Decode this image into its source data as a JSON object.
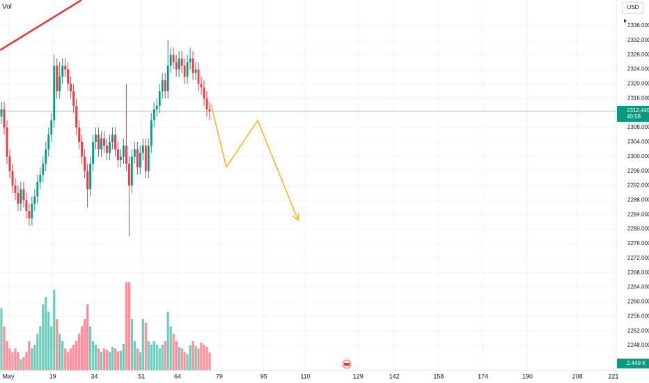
{
  "chart_data": {
    "type": "candlestick",
    "volume_title": "Vol",
    "currency": "USD",
    "countdown": "40:58",
    "volume_last_label": "2.449 K",
    "up_color": "#089981",
    "down_color": "#f23645",
    "grid": true,
    "xlim": [
      0,
      222
    ],
    "xticks": [
      {
        "value": 3,
        "label": "May"
      },
      19,
      34,
      51,
      64,
      79,
      95,
      110,
      129,
      142,
      158,
      174,
      190,
      208,
      221
    ],
    "ylim": [
      2241.1,
      2343.1
    ],
    "yticks": [
      {
        "value": 2248,
        "label": "2248.000"
      },
      {
        "value": 2252,
        "label": "2252.000"
      },
      {
        "value": 2256,
        "label": "2256.000"
      },
      {
        "value": 2260,
        "label": "2260.000"
      },
      {
        "value": 2264,
        "label": "2264.000"
      },
      {
        "value": 2268,
        "label": "2268.000"
      },
      {
        "value": 2272,
        "label": "2272.000"
      },
      {
        "value": 2276,
        "label": "2276.000"
      },
      {
        "value": 2280,
        "label": "2280.000"
      },
      {
        "value": 2284,
        "label": "2284.000"
      },
      {
        "value": 2288,
        "label": "2288.000"
      },
      {
        "value": 2292,
        "label": "2292.000"
      },
      {
        "value": 2296,
        "label": "2296.000"
      },
      {
        "value": 2300,
        "label": "2300.000"
      },
      {
        "value": 2304,
        "label": "2304.000"
      },
      {
        "value": 2308,
        "label": "2308.000"
      },
      {
        "value": 2316,
        "label": "2316.000"
      },
      {
        "value": 2320,
        "label": "2320.000"
      },
      {
        "value": 2324,
        "label": "2324.000"
      },
      {
        "value": 2328,
        "label": "2328.000"
      },
      {
        "value": 2332,
        "label": "2332.000"
      },
      {
        "value": 2336,
        "label": "2336.000"
      }
    ],
    "volume_ylim": [
      0,
      12.5
    ],
    "open": [
      2311,
      2313,
      2308,
      2300,
      2296,
      2292,
      2290,
      2287,
      2291,
      2288,
      2285,
      2283,
      2287,
      2289,
      2293,
      2295,
      2298,
      2302,
      2306,
      2310,
      2325,
      2318,
      2322,
      2325,
      2324,
      2320,
      2318,
      2314,
      2308,
      2304,
      2300,
      2296,
      2291,
      2298,
      2304,
      2306,
      2302,
      2305,
      2303,
      2301,
      2304,
      2306,
      2302,
      2299,
      2300,
      2303,
      2298,
      2292,
      2300,
      2302,
      2297,
      2301,
      2303,
      2296,
      2303,
      2310,
      2313,
      2314,
      2318,
      2321,
      2318,
      2325,
      2328,
      2326,
      2324,
      2327,
      2325,
      2322,
      2326,
      2327,
      2323,
      2324,
      2320,
      2319,
      2316,
      2313
    ],
    "high": [
      2315,
      2315,
      2310,
      2302,
      2298,
      2294,
      2292,
      2293,
      2293,
      2290,
      2287,
      2289,
      2291,
      2295,
      2297,
      2300,
      2304,
      2308,
      2312,
      2328,
      2327,
      2326,
      2327,
      2327,
      2326,
      2322,
      2320,
      2316,
      2310,
      2306,
      2302,
      2298,
      2300,
      2306,
      2308,
      2308,
      2307,
      2307,
      2305,
      2306,
      2308,
      2308,
      2304,
      2302,
      2305,
      2320,
      2300,
      2302,
      2304,
      2304,
      2303,
      2305,
      2305,
      2305,
      2312,
      2315,
      2316,
      2320,
      2323,
      2323,
      2332,
      2330,
      2330,
      2328,
      2329,
      2329,
      2327,
      2328,
      2330,
      2329,
      2326,
      2326,
      2322,
      2321,
      2318,
      2315
    ],
    "low": [
      2309,
      2306,
      2298,
      2294,
      2290,
      2288,
      2285,
      2285,
      2286,
      2283,
      2281,
      2281,
      2285,
      2287,
      2291,
      2293,
      2296,
      2300,
      2304,
      2308,
      2316,
      2316,
      2320,
      2322,
      2318,
      2316,
      2312,
      2306,
      2302,
      2298,
      2294,
      2286,
      2289,
      2296,
      2302,
      2300,
      2300,
      2301,
      2299,
      2299,
      2302,
      2300,
      2297,
      2297,
      2298,
      2296,
      2278,
      2290,
      2298,
      2295,
      2295,
      2299,
      2294,
      2294,
      2301,
      2308,
      2311,
      2312,
      2316,
      2316,
      2316,
      2323,
      2324,
      2322,
      2322,
      2323,
      2320,
      2320,
      2324,
      2321,
      2321,
      2318,
      2317,
      2314,
      2311,
      2310
    ],
    "close": [
      2313,
      2308,
      2300,
      2296,
      2292,
      2290,
      2287,
      2291,
      2288,
      2285,
      2283,
      2287,
      2289,
      2293,
      2295,
      2298,
      2302,
      2306,
      2310,
      2325,
      2318,
      2322,
      2325,
      2324,
      2320,
      2318,
      2314,
      2308,
      2304,
      2300,
      2296,
      2291,
      2298,
      2304,
      2306,
      2302,
      2305,
      2303,
      2301,
      2304,
      2306,
      2302,
      2299,
      2300,
      2303,
      2298,
      2292,
      2300,
      2302,
      2297,
      2301,
      2303,
      2296,
      2303,
      2310,
      2313,
      2314,
      2318,
      2321,
      2318,
      2325,
      2328,
      2326,
      2324,
      2327,
      2325,
      2322,
      2326,
      2327,
      2323,
      2324,
      2320,
      2319,
      2316,
      2313,
      2312.445
    ],
    "volume": [
      8.5,
      6,
      4,
      3,
      2.5,
      3,
      2.5,
      1.5,
      1.8,
      2.5,
      4,
      3,
      3.5,
      5,
      6,
      9,
      10,
      8,
      6,
      11,
      7,
      5,
      4,
      3,
      2.5,
      3,
      3.5,
      4,
      5,
      6,
      7,
      9,
      6,
      4,
      3.5,
      3,
      2.5,
      3,
      2.8,
      2.5,
      3.2,
      3,
      2.6,
      2.7,
      3.6,
      12,
      12,
      7,
      4,
      3,
      2.5,
      7,
      6.5,
      4,
      3.5,
      4,
      3.5,
      3,
      3.5,
      4,
      8,
      6,
      5,
      4,
      3.2,
      3,
      2.5,
      2.2,
      3.4,
      4,
      3.3,
      3,
      3.8,
      3.5,
      3.2,
      2.449
    ]
  }
}
